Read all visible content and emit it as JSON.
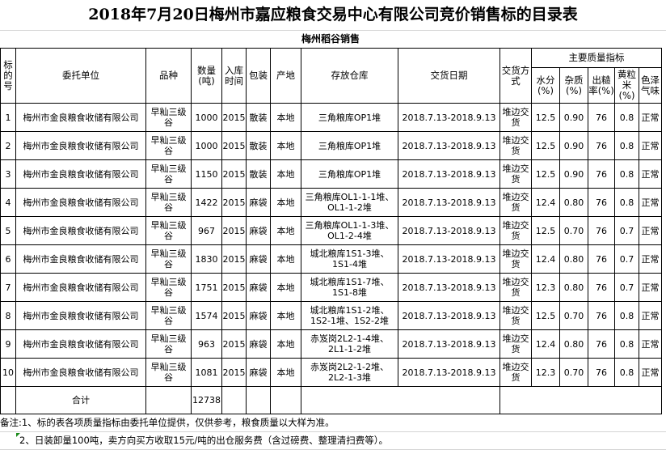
{
  "title": "2018年7月20日梅州市嘉应粮食交易中心有限公司竞价销售标的目录表",
  "subtitle": "梅州稻谷销售",
  "headers": {
    "no": "标的号",
    "unit": "委托单位",
    "variety": "品种",
    "qty": "数量(吨)",
    "year": "入库时间",
    "pack": "包装",
    "origin": "产地",
    "store": "存放仓库",
    "date": "交货日期",
    "delivery": "交货方式",
    "quality": "主要质量指标",
    "moisture": "水分(%)",
    "impurity": "杂质(%)",
    "yield": "出糙率(%)",
    "yellow": "黄粒米(%)",
    "color": "色泽气味"
  },
  "rows": [
    {
      "no": "1",
      "unit": "梅州市金良粮食收储有限公司",
      "variety": "早籼三级谷",
      "qty": "1000",
      "year": "2015",
      "pack": "散装",
      "origin": "本地",
      "store": "三角粮库OP1堆",
      "date": "2018.7.13-2018.9.13",
      "delivery": "堆边交货",
      "moisture": "12.5",
      "impurity": "0.90",
      "yield": "76",
      "yellow": "0.8",
      "color": "正常"
    },
    {
      "no": "2",
      "unit": "梅州市金良粮食收储有限公司",
      "variety": "早籼三级谷",
      "qty": "1000",
      "year": "2015",
      "pack": "散装",
      "origin": "本地",
      "store": "三角粮库OP1堆",
      "date": "2018.7.13-2018.9.13",
      "delivery": "堆边交货",
      "moisture": "12.5",
      "impurity": "0.90",
      "yield": "76",
      "yellow": "0.8",
      "color": "正常"
    },
    {
      "no": "3",
      "unit": "梅州市金良粮食收储有限公司",
      "variety": "早籼三级谷",
      "qty": "1150",
      "year": "2015",
      "pack": "散装",
      "origin": "本地",
      "store": "三角粮库OP1堆",
      "date": "2018.7.13-2018.9.13",
      "delivery": "堆边交货",
      "moisture": "12.5",
      "impurity": "0.90",
      "yield": "76",
      "yellow": "0.8",
      "color": "正常"
    },
    {
      "no": "4",
      "unit": "梅州市金良粮食收储有限公司",
      "variety": "早籼三级谷",
      "qty": "1422",
      "year": "2015",
      "pack": "麻袋",
      "origin": "本地",
      "store": "三角粮库OL1-1-1堆、OL1-1-2堆",
      "date": "2018.7.13-2018.9.13",
      "delivery": "堆边交货",
      "moisture": "12.4",
      "impurity": "0.80",
      "yield": "76",
      "yellow": "0.8",
      "color": "正常"
    },
    {
      "no": "5",
      "unit": "梅州市金良粮食收储有限公司",
      "variety": "早籼三级谷",
      "qty": "967",
      "year": "2015",
      "pack": "麻袋",
      "origin": "本地",
      "store": "三角粮库OL1-1-3堆、OL1-2-4堆",
      "date": "2018.7.13-2018.9.13",
      "delivery": "堆边交货",
      "moisture": "12.5",
      "impurity": "0.70",
      "yield": "76",
      "yellow": "0.7",
      "color": "正常"
    },
    {
      "no": "6",
      "unit": "梅州市金良粮食收储有限公司",
      "variety": "早籼三级谷",
      "qty": "1830",
      "year": "2015",
      "pack": "麻袋",
      "origin": "本地",
      "store": "城北粮库1S1-3堆、1S1-4堆",
      "date": "2018.7.13-2018.9.13",
      "delivery": "堆边交货",
      "moisture": "12.4",
      "impurity": "0.80",
      "yield": "76",
      "yellow": "0.7",
      "color": "正常"
    },
    {
      "no": "7",
      "unit": "梅州市金良粮食收储有限公司",
      "variety": "早籼三级谷",
      "qty": "1751",
      "year": "2015",
      "pack": "麻袋",
      "origin": "本地",
      "store": "城北粮库1S1-7堆、1S1-8堆",
      "date": "2018.7.13-2018.9.13",
      "delivery": "堆边交货",
      "moisture": "12.3",
      "impurity": "0.80",
      "yield": "76",
      "yellow": "0.7",
      "color": "正常"
    },
    {
      "no": "8",
      "unit": "梅州市金良粮食收储有限公司",
      "variety": "早籼三级谷",
      "qty": "1574",
      "year": "2015",
      "pack": "麻袋",
      "origin": "本地",
      "store": "城北粮库1S1-2堆、1S2-1堆、1S2-2堆",
      "date": "2018.7.13-2018.9.13",
      "delivery": "堆边交货",
      "moisture": "12.5",
      "impurity": "0.70",
      "yield": "76",
      "yellow": "0.8",
      "color": "正常"
    },
    {
      "no": "9",
      "unit": "梅州市金良粮食收储有限公司",
      "variety": "早籼三级谷",
      "qty": "963",
      "year": "2015",
      "pack": "麻袋",
      "origin": "本地",
      "store": "赤岌岗2L2-1-4堆、2L1-1-2堆",
      "date": "2018.7.13-2018.9.13",
      "delivery": "堆边交货",
      "moisture": "12.4",
      "impurity": "0.80",
      "yield": "76",
      "yellow": "0.8",
      "color": "正常"
    },
    {
      "no": "10",
      "unit": "梅州市金良粮食收储有限公司",
      "variety": "早籼三级谷",
      "qty": "1081",
      "year": "2015",
      "pack": "麻袋",
      "origin": "本地",
      "store": "赤岌岗2L2-1-2堆、2L2-1-3堆",
      "date": "2018.7.13-2018.9.13",
      "delivery": "堆边交货",
      "moisture": "12.3",
      "impurity": "0.70",
      "yield": "76",
      "yellow": "0.8",
      "color": "正常"
    }
  ],
  "total": {
    "label": "合计",
    "qty": "12738"
  },
  "notes": [
    "备注:1、标的表各项质量指标由委托单位提供，仅供参考，粮食质量以大样为准。",
    "2、日装卸量100吨，卖方向买方收取15元/吨的出仓服务费（含过磅费、整理清扫费等）。"
  ]
}
